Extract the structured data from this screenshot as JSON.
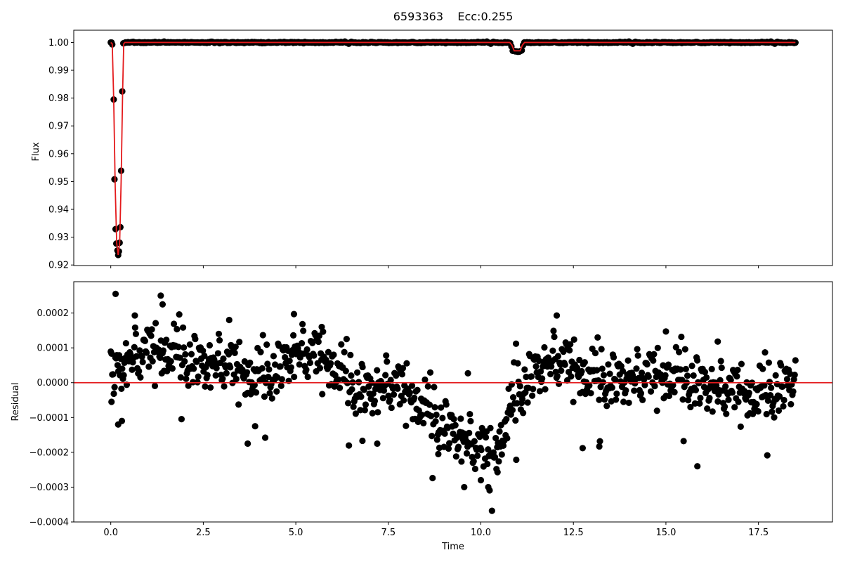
{
  "title": "6593363    Ecc:0.255",
  "colors": {
    "points": "#000000",
    "model": "#e41a1c",
    "axes": "#000000",
    "background": "#ffffff"
  },
  "chart_data": [
    {
      "type": "scatter",
      "panel": "top",
      "ylabel": "Flux",
      "xlabel": "",
      "xlim": [
        -1.0,
        19.5
      ],
      "ylim": [
        0.9198,
        1.0044
      ],
      "xticks": [
        0.0,
        2.5,
        5.0,
        7.5,
        10.0,
        12.5,
        15.0,
        17.5
      ],
      "xtick_labels_visible": false,
      "yticks": [
        0.92,
        0.93,
        0.94,
        0.95,
        0.96,
        0.97,
        0.98,
        0.99,
        1.0
      ],
      "ytick_labels": [
        "0.92",
        "0.93",
        "0.94",
        "0.95",
        "0.96",
        "0.97",
        "0.98",
        "0.99",
        "1.00"
      ],
      "grid": false,
      "series": [
        {
          "kind": "points",
          "baseline_flux": 1.0,
          "baseline_x_range": [
            0.0,
            18.5
          ],
          "eclipse_points": [
            [
              0.04,
              0.9993
            ],
            [
              0.08,
              0.9795
            ],
            [
              0.1,
              0.9508
            ],
            [
              0.13,
              0.9329
            ],
            [
              0.15,
              0.9277
            ],
            [
              0.18,
              0.9252
            ],
            [
              0.2,
              0.9236
            ],
            [
              0.22,
              0.9249
            ],
            [
              0.24,
              0.928
            ],
            [
              0.26,
              0.9336
            ],
            [
              0.28,
              0.9539
            ],
            [
              0.31,
              0.9824
            ],
            [
              0.34,
              0.9997
            ]
          ],
          "secondary_eclipse": {
            "center": 10.98,
            "depth": 0.0032,
            "half_width": 0.18
          }
        },
        {
          "kind": "model-line",
          "points": [
            [
              0.0,
              1.0
            ],
            [
              0.04,
              0.9995
            ],
            [
              0.08,
              0.979
            ],
            [
              0.12,
              0.948
            ],
            [
              0.16,
              0.928
            ],
            [
              0.2,
              0.9236
            ],
            [
              0.24,
              0.928
            ],
            [
              0.28,
              0.95
            ],
            [
              0.32,
              0.982
            ],
            [
              0.35,
              0.9995
            ],
            [
              0.38,
              1.0
            ],
            [
              10.78,
              1.0
            ],
            [
              10.84,
              0.999
            ],
            [
              10.9,
              0.997
            ],
            [
              11.06,
              0.997
            ],
            [
              11.12,
              0.999
            ],
            [
              11.18,
              1.0
            ],
            [
              18.5,
              1.0
            ]
          ]
        }
      ]
    },
    {
      "type": "scatter",
      "panel": "bottom",
      "ylabel": "Residual",
      "xlabel": "Time",
      "xlim": [
        -1.0,
        19.5
      ],
      "ylim": [
        -0.0004,
        0.00029
      ],
      "xticks": [
        0.0,
        2.5,
        5.0,
        7.5,
        10.0,
        12.5,
        15.0,
        17.5
      ],
      "xtick_labels": [
        "0.0",
        "2.5",
        "5.0",
        "7.5",
        "10.0",
        "12.5",
        "15.0",
        "17.5"
      ],
      "yticks": [
        -0.0004,
        -0.0003,
        -0.0002,
        -0.0001,
        0.0,
        0.0001,
        0.0002
      ],
      "ytick_labels": [
        "−0.0004",
        "−0.0003",
        "−0.0002",
        "−0.0001",
        "0.0000",
        "0.0001",
        "0.0002"
      ],
      "grid": false,
      "reference_line": 0.0,
      "residual_trend": [
        [
          0.0,
          2e-05
        ],
        [
          0.5,
          8e-05
        ],
        [
          1.0,
          0.0001
        ],
        [
          1.5,
          9e-05
        ],
        [
          2.0,
          7e-05
        ],
        [
          2.5,
          6e-05
        ],
        [
          3.0,
          7e-05
        ],
        [
          3.5,
          4e-05
        ],
        [
          4.0,
          1e-05
        ],
        [
          4.5,
          4e-05
        ],
        [
          5.0,
          0.0001
        ],
        [
          5.5,
          9e-05
        ],
        [
          6.0,
          5e-05
        ],
        [
          6.5,
          -1e-05
        ],
        [
          7.0,
          -2e-05
        ],
        [
          7.5,
          1e-05
        ],
        [
          8.0,
          -2e-05
        ],
        [
          8.5,
          -8e-05
        ],
        [
          9.0,
          -0.00012
        ],
        [
          9.5,
          -0.00015
        ],
        [
          10.0,
          -0.00018
        ],
        [
          10.3,
          -0.00021
        ],
        [
          10.7,
          -0.00012
        ],
        [
          11.0,
          -3e-05
        ],
        [
          11.5,
          4e-05
        ],
        [
          12.0,
          8e-05
        ],
        [
          12.5,
          5e-05
        ],
        [
          13.0,
          1e-05
        ],
        [
          13.5,
          1e-05
        ],
        [
          14.0,
          2e-05
        ],
        [
          14.5,
          3e-05
        ],
        [
          15.0,
          2e-05
        ],
        [
          15.5,
          1e-05
        ],
        [
          16.0,
          0.0
        ],
        [
          16.5,
          -1e-05
        ],
        [
          17.0,
          -2e-05
        ],
        [
          17.5,
          -4e-05
        ],
        [
          18.0,
          -2e-05
        ],
        [
          18.5,
          2e-05
        ]
      ],
      "residual_scatter": 4.5e-05,
      "notable_points": [
        [
          0.02,
          -5.5e-05
        ],
        [
          0.13,
          0.000255
        ],
        [
          0.2,
          -0.00012
        ],
        [
          0.3,
          -0.00011
        ],
        [
          1.35,
          0.00025
        ],
        [
          1.4,
          0.000225
        ],
        [
          0.65,
          0.000193
        ],
        [
          3.2,
          0.00018
        ],
        [
          3.7,
          -0.000175
        ],
        [
          3.9,
          -0.000125
        ],
        [
          4.95,
          0.000197
        ],
        [
          5.7,
          0.00016
        ],
        [
          6.8,
          -0.000167
        ],
        [
          7.2,
          -0.000175
        ],
        [
          8.85,
          -0.000205
        ],
        [
          9.55,
          -0.0003
        ],
        [
          9.65,
          2.7e-05
        ],
        [
          10.0,
          -0.00028
        ],
        [
          10.2,
          -0.0003
        ],
        [
          10.3,
          -0.000368
        ],
        [
          10.45,
          -0.000257
        ],
        [
          10.95,
          0.000112
        ],
        [
          12.05,
          0.000193
        ],
        [
          12.75,
          -0.000188
        ],
        [
          13.2,
          -0.000183
        ],
        [
          15.0,
          0.000147
        ],
        [
          15.85,
          -0.00024
        ],
        [
          16.4,
          0.000118
        ]
      ]
    }
  ]
}
